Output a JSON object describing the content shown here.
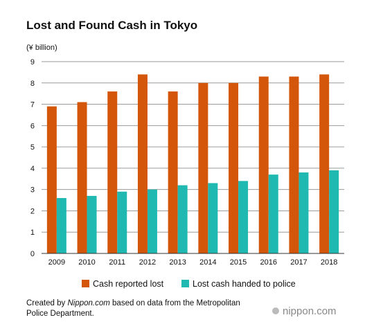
{
  "chart_data": {
    "type": "bar",
    "title": "Lost and Found Cash in Tokyo",
    "y_label": "(¥ billion)",
    "categories": [
      "2009",
      "2010",
      "2011",
      "2012",
      "2013",
      "2014",
      "2015",
      "2016",
      "2017",
      "2018"
    ],
    "series": [
      {
        "name": "Cash reported lost",
        "color": "#d4560a",
        "values": [
          6.9,
          7.1,
          7.6,
          8.4,
          7.6,
          8.0,
          8.0,
          8.3,
          8.3,
          8.4
        ]
      },
      {
        "name": "Lost cash handed to police",
        "color": "#1fb9b2",
        "values": [
          2.6,
          2.7,
          2.9,
          3.0,
          3.2,
          3.3,
          3.4,
          3.7,
          3.8,
          3.9
        ]
      }
    ],
    "ylim": [
      0,
      9
    ],
    "yticks": [
      0,
      1,
      2,
      3,
      4,
      5,
      6,
      7,
      8,
      9
    ],
    "grid": true,
    "legend": "bottom",
    "source": [
      "Created by ",
      "Nippon.com",
      " based on data from the Metropolitan",
      "Police Department."
    ],
    "logo": "nippon.com"
  }
}
